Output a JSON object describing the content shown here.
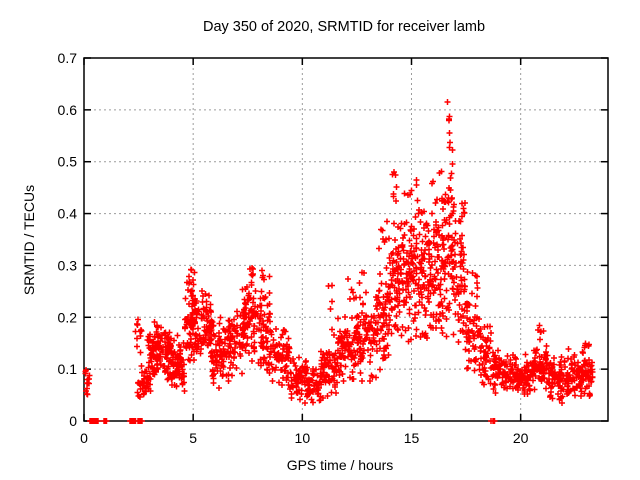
{
  "window": {
    "title": "Day 350 of 2020, SRMTID for receiver lamb"
  },
  "colors": {
    "marker": "#ff0000",
    "grid": "#9c9c9c",
    "axis": "#000000",
    "text": "#000000",
    "background": "#ffffff"
  },
  "chart_data": {
    "type": "scatter",
    "title": "Day 350 of 2020, SRMTID for receiver lamb",
    "xlabel": "GPS time / hours",
    "ylabel": "SRMTID / TECUs",
    "xlim": [
      0,
      24
    ],
    "ylim": [
      0,
      0.7
    ],
    "xticks": [
      {
        "v": 0,
        "label": "0"
      },
      {
        "v": 5,
        "label": "5"
      },
      {
        "v": 10,
        "label": "10"
      },
      {
        "v": 15,
        "label": "15"
      },
      {
        "v": 20,
        "label": "20"
      }
    ],
    "yticks": [
      {
        "v": 0.0,
        "label": "0"
      },
      {
        "v": 0.1,
        "label": "0.1"
      },
      {
        "v": 0.2,
        "label": "0.2"
      },
      {
        "v": 0.3,
        "label": "0.3"
      },
      {
        "v": 0.4,
        "label": "0.4"
      },
      {
        "v": 0.5,
        "label": "0.5"
      },
      {
        "v": 0.6,
        "label": "0.6"
      },
      {
        "v": 0.7,
        "label": "0.7"
      }
    ],
    "grid": true,
    "legend": "none",
    "marker": "plus",
    "marker_color": "#ff0000",
    "marker_arm_px": 3,
    "marker_stroke_px": 1.5,
    "seed": 350,
    "peak_value": 0.615,
    "peak_hour": 16.65,
    "cluster_format": [
      "x_start_hour",
      "x_end_hour",
      "y_min_TECU",
      "y_max_TECU",
      "count"
    ],
    "clusters": [
      [
        0.02,
        0.32,
        0.03,
        0.11,
        14
      ],
      [
        2.35,
        2.65,
        0.12,
        0.21,
        12
      ],
      [
        2.45,
        3.05,
        0.03,
        0.12,
        40
      ],
      [
        2.9,
        3.4,
        0.08,
        0.21,
        45
      ],
      [
        3.3,
        4.0,
        0.07,
        0.19,
        85
      ],
      [
        4.0,
        4.6,
        0.05,
        0.17,
        75
      ],
      [
        4.6,
        5.25,
        0.1,
        0.28,
        90
      ],
      [
        4.8,
        5.1,
        0.26,
        0.3,
        6
      ],
      [
        5.25,
        5.85,
        0.11,
        0.26,
        70
      ],
      [
        5.85,
        6.6,
        0.06,
        0.2,
        70
      ],
      [
        6.6,
        7.25,
        0.07,
        0.23,
        60
      ],
      [
        7.25,
        8.05,
        0.09,
        0.28,
        90
      ],
      [
        7.4,
        7.9,
        0.27,
        0.3,
        6
      ],
      [
        8.05,
        8.6,
        0.07,
        0.27,
        65
      ],
      [
        8.15,
        8.5,
        0.26,
        0.3,
        5
      ],
      [
        8.6,
        9.45,
        0.05,
        0.19,
        70
      ],
      [
        9.45,
        10.2,
        0.03,
        0.13,
        60
      ],
      [
        10.2,
        10.85,
        0.025,
        0.11,
        50
      ],
      [
        10.85,
        11.6,
        0.04,
        0.15,
        65
      ],
      [
        11.2,
        11.45,
        0.15,
        0.28,
        6
      ],
      [
        11.6,
        12.45,
        0.06,
        0.21,
        75
      ],
      [
        12.1,
        12.4,
        0.2,
        0.28,
        5
      ],
      [
        12.45,
        13.25,
        0.07,
        0.25,
        75
      ],
      [
        12.6,
        12.85,
        0.26,
        0.3,
        3
      ],
      [
        13.25,
        14.0,
        0.08,
        0.3,
        80
      ],
      [
        13.5,
        13.98,
        0.3,
        0.4,
        8
      ],
      [
        14.0,
        14.45,
        0.15,
        0.4,
        55
      ],
      [
        14.1,
        14.35,
        0.4,
        0.52,
        7
      ],
      [
        14.45,
        15.2,
        0.14,
        0.42,
        90
      ],
      [
        14.6,
        15.1,
        0.42,
        0.45,
        4
      ],
      [
        15.2,
        16.0,
        0.12,
        0.44,
        100
      ],
      [
        15.2,
        16.0,
        0.44,
        0.47,
        4
      ],
      [
        16.0,
        16.55,
        0.13,
        0.5,
        75
      ],
      [
        16.55,
        16.9,
        0.15,
        0.55,
        50
      ],
      [
        16.58,
        16.8,
        0.55,
        0.615,
        4
      ],
      [
        16.9,
        17.45,
        0.1,
        0.47,
        70
      ],
      [
        17.45,
        18.1,
        0.07,
        0.3,
        60
      ],
      [
        18.1,
        18.65,
        0.05,
        0.2,
        50
      ],
      [
        18.65,
        19.5,
        0.04,
        0.14,
        60
      ],
      [
        19.5,
        20.45,
        0.04,
        0.13,
        85
      ],
      [
        20.45,
        21.25,
        0.05,
        0.16,
        70
      ],
      [
        20.75,
        21.05,
        0.15,
        0.2,
        6
      ],
      [
        21.25,
        22.0,
        0.03,
        0.13,
        70
      ],
      [
        22.0,
        23.3,
        0.04,
        0.14,
        115
      ],
      [
        22.7,
        23.15,
        0.13,
        0.155,
        6
      ]
    ],
    "zero_cluster_format": [
      "x_start_hour",
      "x_end_hour",
      "count"
    ],
    "zero_clusters": [
      [
        0.25,
        0.7,
        25
      ],
      [
        0.92,
        1.05,
        7
      ],
      [
        2.1,
        2.4,
        10
      ],
      [
        2.45,
        2.67,
        10
      ],
      [
        18.62,
        18.8,
        8
      ]
    ]
  }
}
